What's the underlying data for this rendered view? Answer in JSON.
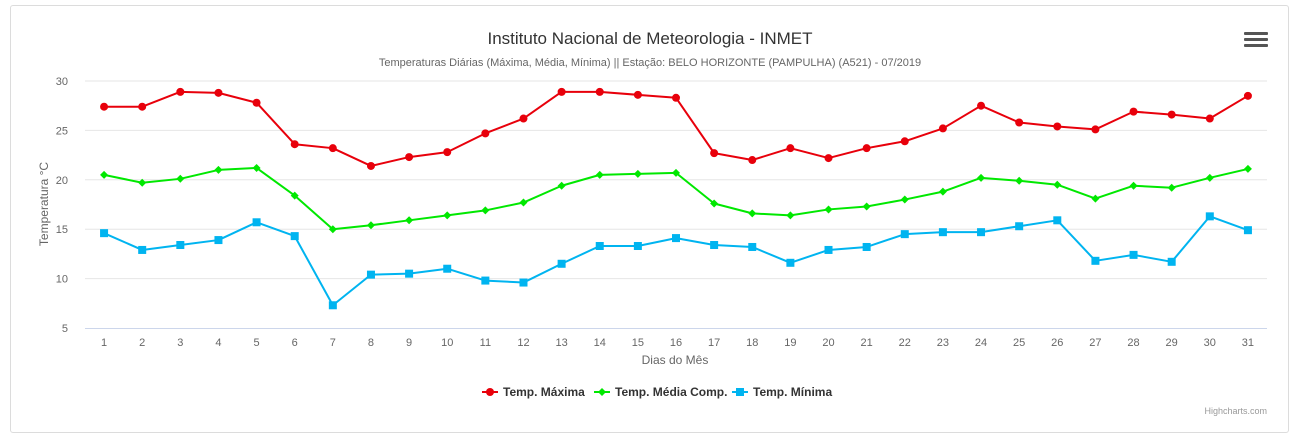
{
  "chart_data": {
    "type": "line",
    "title": "Instituto Nacional de Meteorologia - INMET",
    "subtitle": "Temperaturas Diárias (Máxima, Média, Mínima) || Estação: BELO HORIZONTE (PAMPULHA) (A521) - 07/2019",
    "xlabel": "Dias do Mês",
    "ylabel": "Temperatura °C",
    "ylim": [
      5,
      30
    ],
    "yticks": [
      5,
      10,
      15,
      20,
      25,
      30
    ],
    "grid": true,
    "legend_position": "bottom-center",
    "categories": [
      "1",
      "2",
      "3",
      "4",
      "5",
      "6",
      "7",
      "8",
      "9",
      "10",
      "11",
      "12",
      "13",
      "14",
      "15",
      "16",
      "17",
      "18",
      "19",
      "20",
      "21",
      "22",
      "23",
      "24",
      "25",
      "26",
      "27",
      "28",
      "29",
      "30",
      "31"
    ],
    "series": [
      {
        "name": "Temp. Máxima",
        "color": "#e8000b",
        "marker": "circle",
        "values": [
          27.4,
          27.4,
          28.9,
          28.8,
          27.8,
          23.6,
          23.2,
          21.4,
          22.3,
          22.8,
          24.7,
          26.2,
          28.9,
          28.9,
          28.6,
          28.3,
          22.7,
          22.0,
          23.2,
          22.2,
          23.2,
          23.9,
          25.2,
          27.5,
          25.8,
          25.4,
          25.1,
          26.9,
          26.6,
          26.2,
          28.5
        ]
      },
      {
        "name": "Temp. Média Comp.",
        "color": "#00e800",
        "marker": "diamond",
        "values": [
          20.5,
          19.7,
          20.1,
          21.0,
          21.2,
          18.4,
          15.0,
          15.4,
          15.9,
          16.4,
          16.9,
          17.7,
          19.4,
          20.5,
          20.6,
          20.7,
          17.6,
          16.6,
          16.4,
          17.0,
          17.3,
          18.0,
          18.8,
          20.2,
          19.9,
          19.5,
          18.1,
          19.4,
          19.2,
          20.2,
          21.1
        ]
      },
      {
        "name": "Temp. Mínima",
        "color": "#00b4f0",
        "marker": "square",
        "values": [
          14.6,
          12.9,
          13.4,
          13.9,
          15.7,
          14.3,
          7.3,
          10.4,
          10.5,
          11.0,
          9.8,
          9.6,
          11.5,
          13.3,
          13.3,
          14.1,
          13.4,
          13.2,
          11.6,
          12.9,
          13.2,
          14.5,
          14.7,
          14.7,
          15.3,
          15.9,
          11.8,
          12.4,
          11.7,
          16.3,
          14.9
        ]
      }
    ]
  },
  "menu": {
    "icon": "hamburger-menu-icon"
  },
  "credits": "Highcharts.com"
}
